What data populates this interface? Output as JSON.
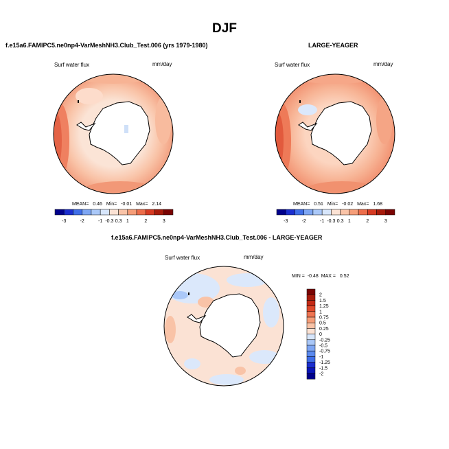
{
  "figure": {
    "title": "DJF",
    "panel_a_title": "f.e15a6.FAMIPC5.ne0np4-VarMeshNH3.Club_Test.006 (yrs 1979-1980)",
    "panel_b_title": "LARGE-YEAGER",
    "panel_c_title": "f.e15a6.FAMIPC5.ne0np4-VarMeshNH3.Club_Test.006 - LARGE-YEAGER"
  },
  "panels": [
    {
      "variable": "Surf water flux",
      "units": "mm/day",
      "stats": {
        "mean_label": "MEAN=",
        "mean": "0.46",
        "min_label": "Min=",
        "min": "-0.01",
        "max_label": "Max=",
        "max": "2.14"
      }
    },
    {
      "variable": "Surf water flux",
      "units": "mm/day",
      "stats": {
        "mean_label": "MEAN=",
        "mean": "0.51",
        "min_label": "Min=",
        "min": "-0.02",
        "max_label": "Max=",
        "max": "1.68"
      }
    },
    {
      "variable": "Surf water flux",
      "units": "mm/day",
      "stats": {
        "min_label": "MIN =",
        "min": "-0.48",
        "max_label": "MAX =",
        "max": "0.52"
      }
    }
  ],
  "chart_data": [
    {
      "type": "heatmap",
      "projection": "south-polar-stereographic",
      "title": "Surf water flux",
      "units": "mm/day",
      "mean": 0.46,
      "min": -0.01,
      "max": 2.14,
      "colorbar_levels": [
        -3,
        -2,
        -1,
        -0.3,
        0.3,
        1,
        2,
        3
      ],
      "colorbar_labels": [
        "-3",
        "-2",
        "-1",
        "-0.3",
        "0.3",
        "1",
        "2",
        "3"
      ]
    },
    {
      "type": "heatmap",
      "projection": "south-polar-stereographic",
      "title": "Surf water flux",
      "units": "mm/day",
      "mean": 0.51,
      "min": -0.02,
      "max": 1.68,
      "colorbar_levels": [
        -3,
        -2,
        -1,
        -0.3,
        0.3,
        1,
        2,
        3
      ],
      "colorbar_labels": [
        "-3",
        "-2",
        "-1",
        "-0.3",
        "0.3",
        "1",
        "2",
        "3"
      ]
    },
    {
      "type": "heatmap",
      "projection": "south-polar-stereographic",
      "title": "Surf water flux",
      "units": "mm/day",
      "min": -0.48,
      "max": 0.52,
      "colorbar_levels": [
        2,
        1.5,
        1.25,
        1,
        0.75,
        0.5,
        0.25,
        0,
        -0.25,
        -0.5,
        -0.75,
        -1,
        -1.25,
        -1.5,
        -2
      ],
      "colorbar_labels": [
        "2",
        "1.5",
        "1.25",
        "1",
        "0.75",
        "0.5",
        "0.25",
        "0",
        "-0.25",
        "-0.5",
        "-0.75",
        "-1",
        "-1.25",
        "-1.5",
        "-2"
      ]
    }
  ],
  "colors": {
    "h_bar": [
      "#00008b",
      "#1b2ecf",
      "#3f6ee8",
      "#7ea6f3",
      "#aac8f8",
      "#d7e6fb",
      "#fbe2d4",
      "#f9c3a7",
      "#f59d78",
      "#ec6d4a",
      "#d63a22",
      "#a71b0b",
      "#7a0403"
    ],
    "v_bar": [
      "#7a0403",
      "#a71b0b",
      "#c42a16",
      "#df4a2c",
      "#ef7552",
      "#f59d78",
      "#f9c3a7",
      "#fbe2d4",
      "#d7e6fb",
      "#aac8f8",
      "#7ea6f3",
      "#5b8aef",
      "#3f6ee8",
      "#1b2ecf",
      "#0a16b8",
      "#00008b"
    ]
  }
}
